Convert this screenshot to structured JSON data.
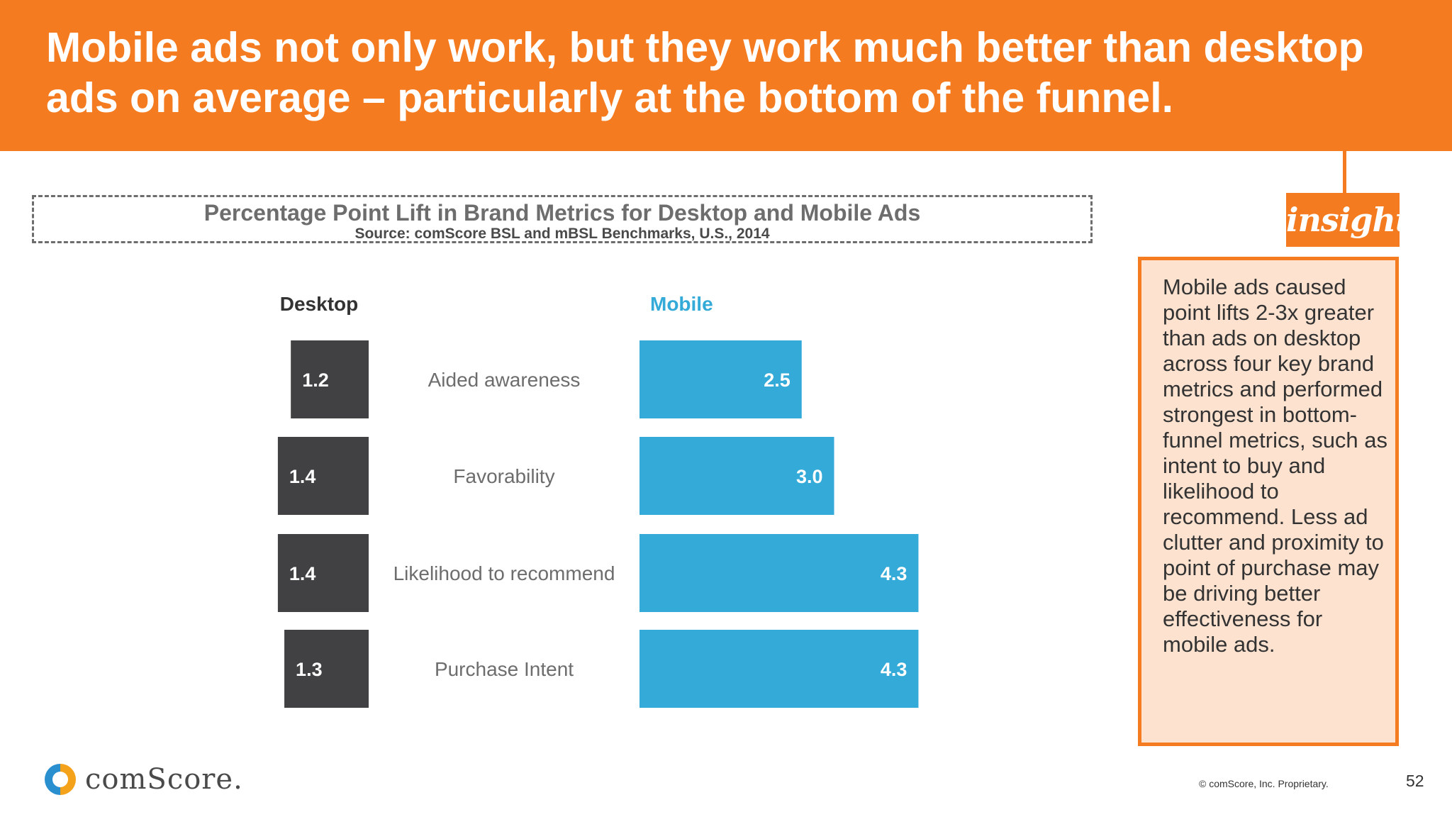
{
  "header": {
    "title": "Mobile ads not only work, but they work much better than desktop ads on average – particularly at the bottom of the funnel."
  },
  "chart_data": {
    "type": "bar",
    "title": "Percentage Point Lift in Brand Metrics for Desktop and Mobile Ads",
    "subtitle": "Source: comScore BSL and mBSL Benchmarks, U.S., 2014",
    "categories": [
      "Aided awareness",
      "Favorability",
      "Likelihood to recommend",
      "Purchase Intent"
    ],
    "series": [
      {
        "name": "Desktop",
        "values": [
          1.2,
          1.4,
          1.4,
          1.3
        ],
        "labels": [
          "1.2",
          "1.4",
          "1.4",
          "1.3"
        ],
        "color": "#414042"
      },
      {
        "name": "Mobile",
        "values": [
          2.5,
          3.0,
          4.3,
          4.3
        ],
        "labels": [
          "2.5",
          "3.0",
          "4.3",
          "4.3"
        ],
        "color": "#33aad8"
      }
    ],
    "legend": "column-headers",
    "grid": false
  },
  "insight": {
    "tag": "insight",
    "text": "Mobile ads caused point lifts 2-3x greater than ads on desktop across four key brand metrics and performed strongest in bottom-funnel metrics, such as intent to buy and likelihood to recommend. Less ad clutter and proximity to point of purchase may be driving better effectiveness for mobile ads."
  },
  "footer": {
    "logo_text": "comScore.",
    "copyright": "© comScore, Inc. Proprietary.",
    "page_number": "52"
  },
  "colors": {
    "accent": "#f47b20",
    "desktop": "#414042",
    "mobile": "#33aad8",
    "insight_bg": "#fde2cf"
  }
}
